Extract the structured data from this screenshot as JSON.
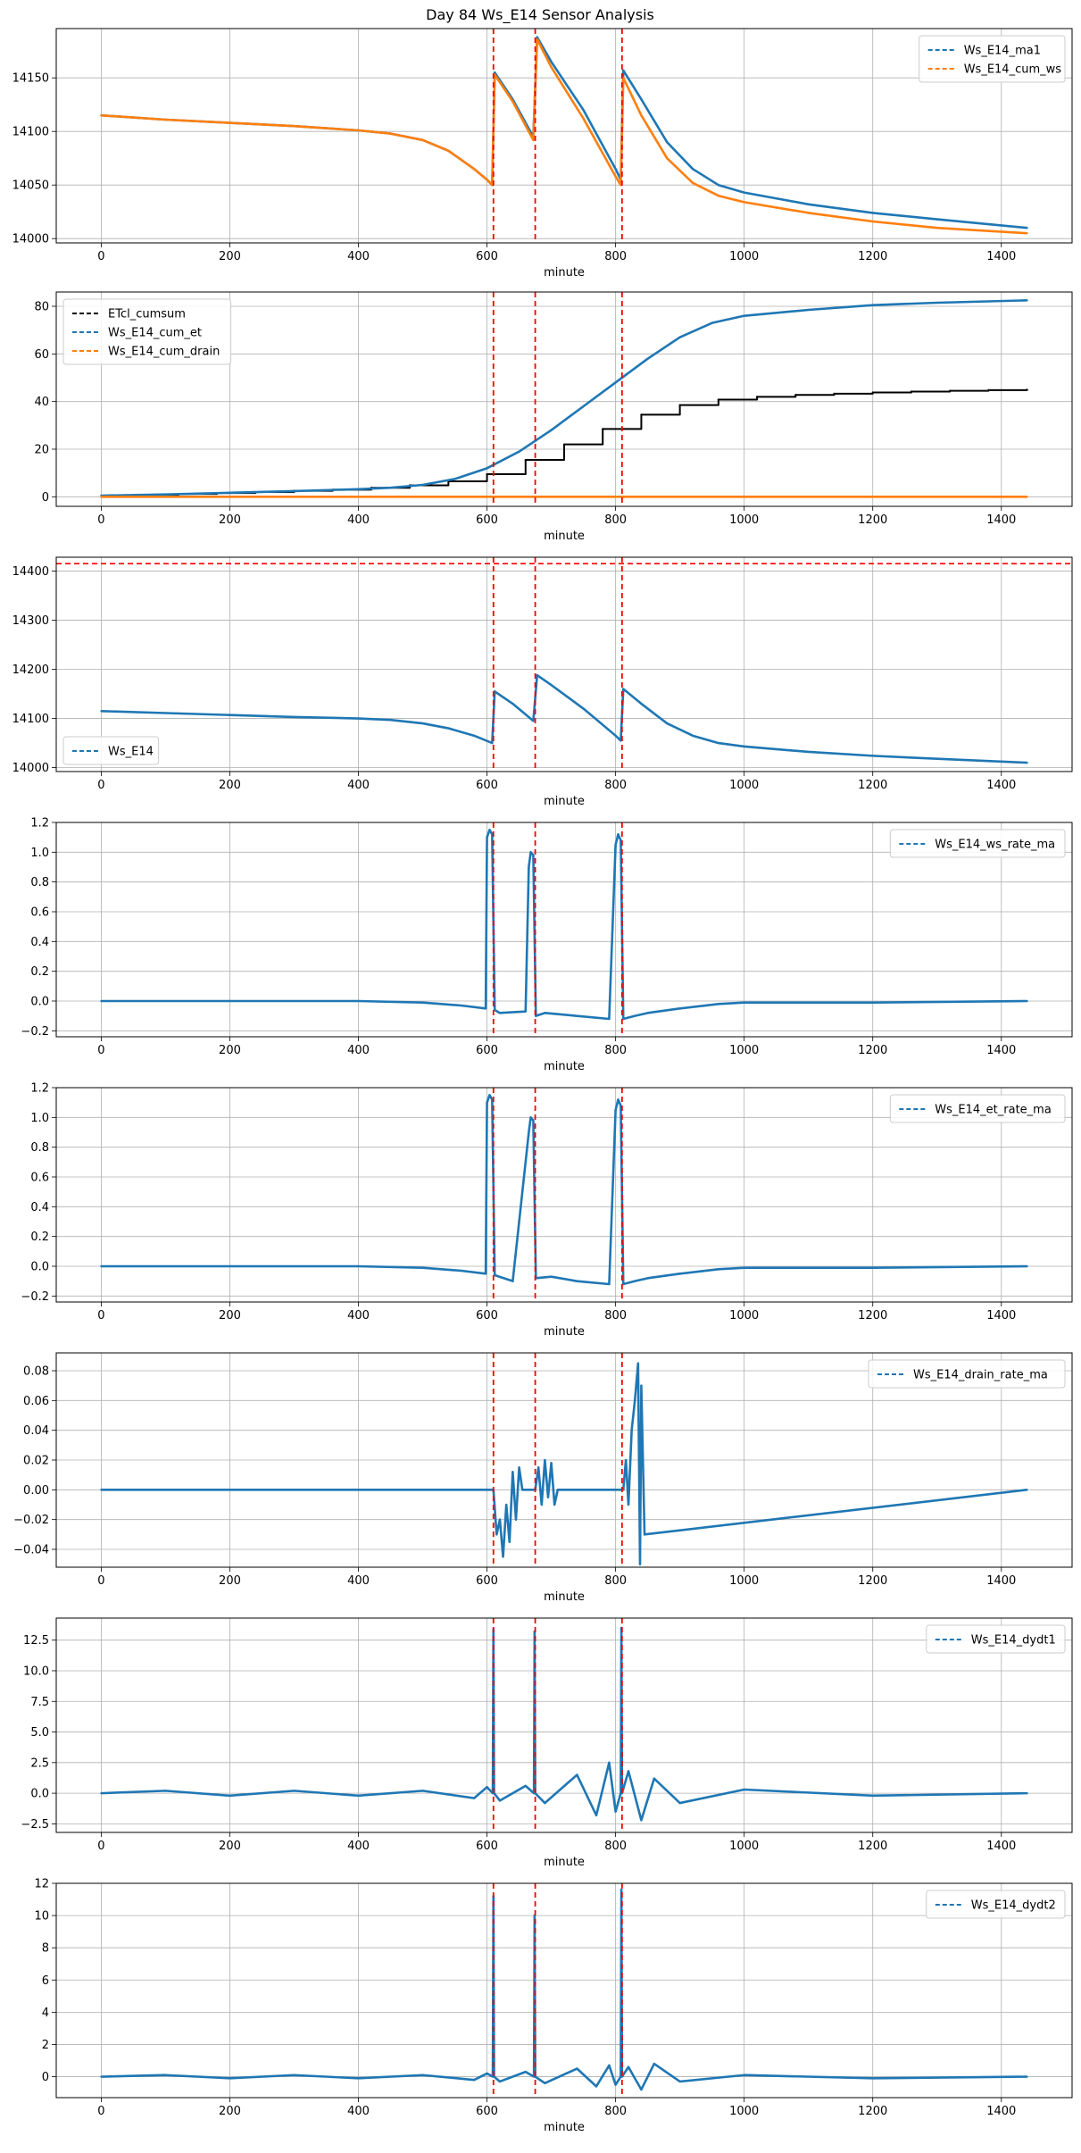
{
  "figure_title": "Day 84 Ws_E14 Sensor Analysis",
  "colors": {
    "blue": "#1f77b4",
    "orange": "#ff7f0e",
    "black": "#000000",
    "red": "#ff0000",
    "grid": "#b0b0b0"
  },
  "vlines": [
    610,
    675,
    810
  ],
  "chart_data": [
    {
      "type": "line",
      "title": "Day 84 Ws_E14 Sensor Analysis",
      "xlabel": "minute",
      "ylabel": "",
      "xlim": [
        -70,
        1510
      ],
      "ylim": [
        13996,
        14196
      ],
      "xticks": [
        0,
        200,
        400,
        600,
        800,
        1000,
        1200,
        1400
      ],
      "yticks": [
        14000,
        14050,
        14100,
        14150
      ],
      "legend": "top-right",
      "series": [
        {
          "name": "Ws_E14_ma1",
          "color": "#1f77b4",
          "x": [
            0,
            100,
            200,
            300,
            400,
            450,
            500,
            540,
            580,
            600,
            608,
            612,
            640,
            672,
            678,
            700,
            750,
            800,
            808,
            812,
            840,
            880,
            920,
            960,
            1000,
            1100,
            1200,
            1300,
            1440
          ],
          "y": [
            14115,
            14111,
            14108,
            14105,
            14101,
            14098,
            14092,
            14082,
            14065,
            14055,
            14050,
            14155,
            14130,
            14095,
            14188,
            14165,
            14120,
            14065,
            14055,
            14157,
            14130,
            14090,
            14065,
            14050,
            14043,
            14032,
            14024,
            14018,
            14010
          ]
        },
        {
          "name": "Ws_E14_cum_ws",
          "color": "#ff7f0e",
          "x": [
            0,
            100,
            200,
            300,
            400,
            450,
            500,
            540,
            580,
            600,
            608,
            612,
            640,
            672,
            678,
            700,
            750,
            800,
            808,
            812,
            840,
            880,
            920,
            960,
            1000,
            1100,
            1200,
            1300,
            1440
          ],
          "y": [
            14115,
            14111,
            14108,
            14105,
            14101,
            14098,
            14092,
            14082,
            14065,
            14055,
            14050,
            14153,
            14128,
            14092,
            14186,
            14160,
            14112,
            14058,
            14050,
            14150,
            14115,
            14075,
            14052,
            14040,
            14034,
            14024,
            14016,
            14010,
            14005
          ]
        }
      ]
    },
    {
      "type": "line",
      "xlabel": "minute",
      "ylabel": "",
      "xlim": [
        -70,
        1510
      ],
      "ylim": [
        -4,
        86
      ],
      "xticks": [
        0,
        200,
        400,
        600,
        800,
        1000,
        1200,
        1400
      ],
      "yticks": [
        0,
        20,
        40,
        60,
        80
      ],
      "legend": "top-left",
      "series": [
        {
          "name": "ETcl_cumsum",
          "color": "#000000",
          "step": true,
          "x": [
            0,
            60,
            120,
            180,
            240,
            300,
            360,
            420,
            480,
            540,
            600,
            660,
            720,
            780,
            840,
            900,
            960,
            1020,
            1080,
            1140,
            1200,
            1260,
            1320,
            1380,
            1440
          ],
          "y": [
            0.5,
            0.8,
            1.2,
            1.6,
            2.0,
            2.5,
            3.0,
            3.8,
            4.8,
            6.5,
            9.5,
            15.5,
            22,
            28.5,
            34.5,
            38.5,
            40.8,
            42,
            42.8,
            43.3,
            43.8,
            44.2,
            44.5,
            44.8,
            45
          ]
        },
        {
          "name": "Ws_E14_cum_et",
          "color": "#1f77b4",
          "x": [
            0,
            100,
            200,
            300,
            400,
            450,
            500,
            550,
            600,
            650,
            700,
            750,
            800,
            850,
            900,
            950,
            1000,
            1100,
            1200,
            1300,
            1440
          ],
          "y": [
            0.5,
            1,
            1.7,
            2.4,
            3.2,
            3.8,
            5,
            7.5,
            12,
            19,
            28,
            38,
            48,
            58,
            67,
            73,
            76,
            78.5,
            80.5,
            81.5,
            82.5
          ]
        },
        {
          "name": "Ws_E14_cum_drain",
          "color": "#ff7f0e",
          "x": [
            0,
            1440
          ],
          "y": [
            0,
            0
          ]
        }
      ]
    },
    {
      "type": "line",
      "xlabel": "minute",
      "ylabel": "",
      "xlim": [
        -70,
        1510
      ],
      "ylim": [
        13992,
        14428
      ],
      "xticks": [
        0,
        200,
        400,
        600,
        800,
        1000,
        1200,
        1400
      ],
      "yticks": [
        14000,
        14100,
        14200,
        14300,
        14400
      ],
      "legend": "bottom-left",
      "hline": 14415,
      "series": [
        {
          "name": "Ws_E14",
          "color": "#1f77b4",
          "x": [
            0,
            100,
            200,
            300,
            400,
            450,
            500,
            540,
            580,
            608,
            612,
            640,
            672,
            678,
            700,
            750,
            800,
            808,
            812,
            840,
            880,
            920,
            960,
            1000,
            1100,
            1200,
            1300,
            1440
          ],
          "y": [
            14115,
            14111,
            14107,
            14103,
            14100,
            14097,
            14090,
            14080,
            14065,
            14050,
            14155,
            14130,
            14095,
            14188,
            14168,
            14120,
            14065,
            14055,
            14160,
            14130,
            14090,
            14065,
            14050,
            14043,
            14032,
            14024,
            14018,
            14010
          ]
        }
      ]
    },
    {
      "type": "line",
      "xlabel": "minute",
      "ylabel": "",
      "xlim": [
        -70,
        1510
      ],
      "ylim": [
        -0.24,
        1.2
      ],
      "xticks": [
        0,
        200,
        400,
        600,
        800,
        1000,
        1200,
        1400
      ],
      "yticks": [
        -0.2,
        0.0,
        0.2,
        0.4,
        0.6,
        0.8,
        1.0,
        1.2
      ],
      "yticklabels": [
        "−0.2",
        "0.0",
        "0.2",
        "0.4",
        "0.6",
        "0.8",
        "1.0",
        "1.2"
      ],
      "legend": "top-right",
      "series": [
        {
          "name": "Ws_E14_ws_rate_ma",
          "color": "#1f77b4",
          "dashed_segments": true,
          "x": [
            0,
            400,
            500,
            560,
            598,
            600,
            604,
            608,
            612,
            620,
            660,
            665,
            668,
            672,
            676,
            690,
            740,
            790,
            800,
            804,
            808,
            812,
            830,
            850,
            900,
            960,
            1000,
            1200,
            1440
          ],
          "y": [
            0,
            0,
            -0.01,
            -0.03,
            -0.05,
            1.1,
            1.15,
            1.12,
            -0.06,
            -0.08,
            -0.07,
            0.9,
            1.0,
            0.98,
            -0.1,
            -0.08,
            -0.1,
            -0.12,
            1.05,
            1.12,
            1.08,
            -0.12,
            -0.1,
            -0.08,
            -0.05,
            -0.02,
            -0.01,
            -0.01,
            0
          ]
        }
      ]
    },
    {
      "type": "line",
      "xlabel": "minute",
      "ylabel": "",
      "xlim": [
        -70,
        1510
      ],
      "ylim": [
        -0.24,
        1.2
      ],
      "xticks": [
        0,
        200,
        400,
        600,
        800,
        1000,
        1200,
        1400
      ],
      "yticks": [
        -0.2,
        0.0,
        0.2,
        0.4,
        0.6,
        0.8,
        1.0,
        1.2
      ],
      "yticklabels": [
        "−0.2",
        "0.0",
        "0.2",
        "0.4",
        "0.6",
        "0.8",
        "1.0",
        "1.2"
      ],
      "legend": "top-right",
      "series": [
        {
          "name": "Ws_E14_et_rate_ma",
          "color": "#1f77b4",
          "x": [
            0,
            400,
            500,
            560,
            598,
            600,
            604,
            608,
            612,
            640,
            665,
            668,
            672,
            676,
            700,
            740,
            790,
            800,
            804,
            808,
            812,
            830,
            850,
            900,
            960,
            1000,
            1200,
            1440
          ],
          "y": [
            0,
            0,
            -0.01,
            -0.03,
            -0.05,
            1.1,
            1.15,
            1.12,
            -0.06,
            -0.1,
            0.9,
            1.0,
            0.98,
            -0.08,
            -0.07,
            -0.1,
            -0.12,
            1.05,
            1.12,
            1.08,
            -0.12,
            -0.1,
            -0.08,
            -0.05,
            -0.02,
            -0.01,
            -0.01,
            0
          ]
        }
      ]
    },
    {
      "type": "line",
      "xlabel": "minute",
      "ylabel": "",
      "xlim": [
        -70,
        1510
      ],
      "ylim": [
        -0.052,
        0.092
      ],
      "xticks": [
        0,
        200,
        400,
        600,
        800,
        1000,
        1200,
        1400
      ],
      "yticks": [
        -0.04,
        -0.02,
        0.0,
        0.02,
        0.04,
        0.06,
        0.08
      ],
      "yticklabels": [
        "−0.04",
        "−0.02",
        "0.00",
        "0.02",
        "0.04",
        "0.06",
        "0.08"
      ],
      "legend": "top-right",
      "series": [
        {
          "name": "Ws_E14_drain_rate_ma",
          "color": "#1f77b4",
          "x": [
            0,
            610,
            615,
            620,
            625,
            630,
            635,
            640,
            645,
            650,
            655,
            660,
            675,
            680,
            685,
            690,
            695,
            700,
            705,
            710,
            812,
            816,
            820,
            825,
            830,
            835,
            838,
            840,
            845,
            1440
          ],
          "y": [
            0,
            0,
            -0.03,
            -0.02,
            -0.045,
            -0.01,
            -0.035,
            0.012,
            -0.02,
            0.015,
            0,
            0,
            0,
            0.015,
            -0.01,
            0.02,
            -0.005,
            0.018,
            -0.01,
            0,
            0,
            0.02,
            -0.01,
            0.04,
            0.06,
            0.085,
            -0.05,
            0.07,
            -0.03,
            0
          ]
        }
      ]
    },
    {
      "type": "line",
      "xlabel": "minute",
      "ylabel": "",
      "xlim": [
        -70,
        1510
      ],
      "ylim": [
        -3.2,
        14.3
      ],
      "xticks": [
        0,
        200,
        400,
        600,
        800,
        1000,
        1200,
        1400
      ],
      "yticks": [
        -2.5,
        0.0,
        2.5,
        5.0,
        7.5,
        10.0,
        12.5
      ],
      "yticklabels": [
        "−2.5",
        "0.0",
        "2.5",
        "5.0",
        "7.5",
        "10.0",
        "12.5"
      ],
      "legend": "top-right",
      "series": [
        {
          "name": "Ws_E14_dydt1",
          "color": "#1f77b4",
          "x": [
            0,
            100,
            200,
            300,
            400,
            500,
            580,
            600,
            609,
            610,
            611,
            620,
            660,
            673,
            674,
            675,
            690,
            740,
            770,
            790,
            800,
            808,
            809,
            810,
            820,
            840,
            860,
            900,
            1000,
            1200,
            1440
          ],
          "y": [
            0,
            0.2,
            -0.2,
            0.2,
            -0.2,
            0.2,
            -0.4,
            0.5,
            0,
            13.4,
            0,
            -0.6,
            0.6,
            0,
            13.2,
            0,
            -0.8,
            1.5,
            -1.8,
            2.5,
            -1.5,
            0,
            13.5,
            0,
            1.8,
            -2.2,
            1.2,
            -0.8,
            0.3,
            -0.2,
            0
          ]
        }
      ]
    },
    {
      "type": "line",
      "xlabel": "minute",
      "ylabel": "",
      "xlim": [
        -70,
        1510
      ],
      "ylim": [
        -1.3,
        12.0
      ],
      "xticks": [
        0,
        200,
        400,
        600,
        800,
        1000,
        1200,
        1400
      ],
      "yticks": [
        0,
        2,
        4,
        6,
        8,
        10,
        12
      ],
      "legend": "top-right",
      "series": [
        {
          "name": "Ws_E14_dydt2",
          "color": "#1f77b4",
          "x": [
            0,
            100,
            200,
            300,
            400,
            500,
            580,
            600,
            609,
            610,
            611,
            620,
            660,
            673,
            674,
            675,
            690,
            740,
            770,
            790,
            800,
            808,
            809,
            810,
            820,
            840,
            860,
            900,
            1000,
            1200,
            1440
          ],
          "y": [
            0,
            0.1,
            -0.1,
            0.1,
            -0.1,
            0.1,
            -0.2,
            0.2,
            0,
            11.2,
            0,
            -0.3,
            0.3,
            0,
            10.0,
            0,
            -0.4,
            0.5,
            -0.6,
            0.7,
            -0.5,
            0,
            11.6,
            0,
            0.6,
            -0.8,
            0.8,
            -0.3,
            0.1,
            -0.1,
            0
          ]
        }
      ]
    }
  ]
}
